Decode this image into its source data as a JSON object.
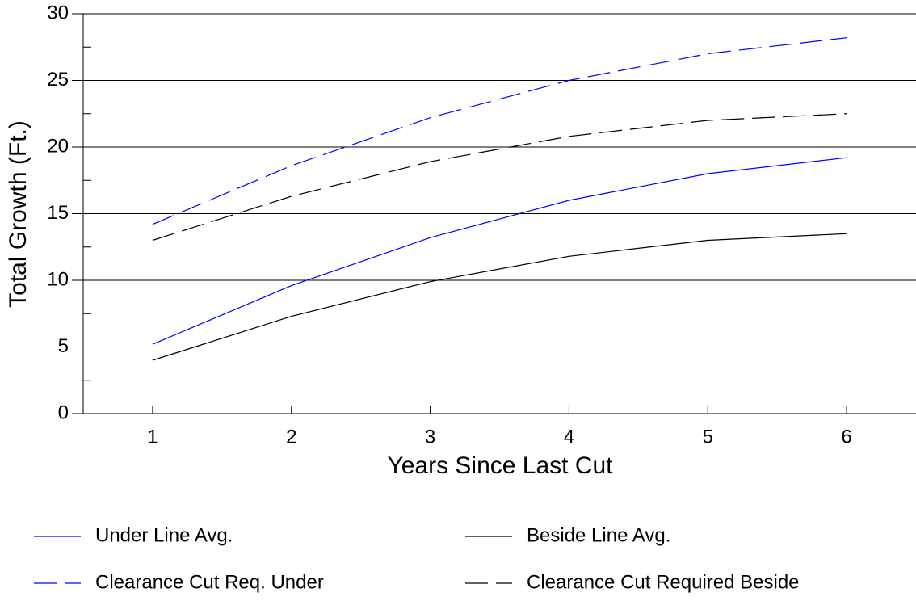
{
  "chart_data": {
    "type": "line",
    "xlabel": "Years Since Last Cut",
    "ylabel": "Total Growth (Ft.)",
    "x": [
      1,
      2,
      3,
      4,
      5,
      6
    ],
    "xlim": [
      0.5,
      6.5
    ],
    "xticks": [
      1,
      2,
      3,
      4,
      5,
      6
    ],
    "ylim": [
      0,
      30
    ],
    "yticks": [
      0,
      5,
      10,
      15,
      20,
      25,
      30
    ],
    "minor_yticks": [
      2.5,
      7.5,
      12.5,
      17.5,
      22.5,
      27.5
    ],
    "grid": true,
    "legend": "bottom",
    "series": [
      {
        "name": "Under Line Avg.",
        "color": "#0000ff",
        "dashed": false,
        "values": [
          5.2,
          9.6,
          13.2,
          16.0,
          18.0,
          19.2
        ]
      },
      {
        "name": "Beside Line Avg.",
        "color": "#000000",
        "dashed": false,
        "values": [
          4.0,
          7.3,
          9.9,
          11.8,
          13.0,
          13.5
        ]
      },
      {
        "name": "Clearance Cut Req. Under",
        "color": "#0000ff",
        "dashed": true,
        "values": [
          14.2,
          18.6,
          22.2,
          25.0,
          27.0,
          28.2
        ]
      },
      {
        "name": "Clearance Cut Required Beside",
        "color": "#000000",
        "dashed": true,
        "values": [
          13.0,
          16.3,
          18.9,
          20.8,
          22.0,
          22.5
        ]
      }
    ]
  }
}
